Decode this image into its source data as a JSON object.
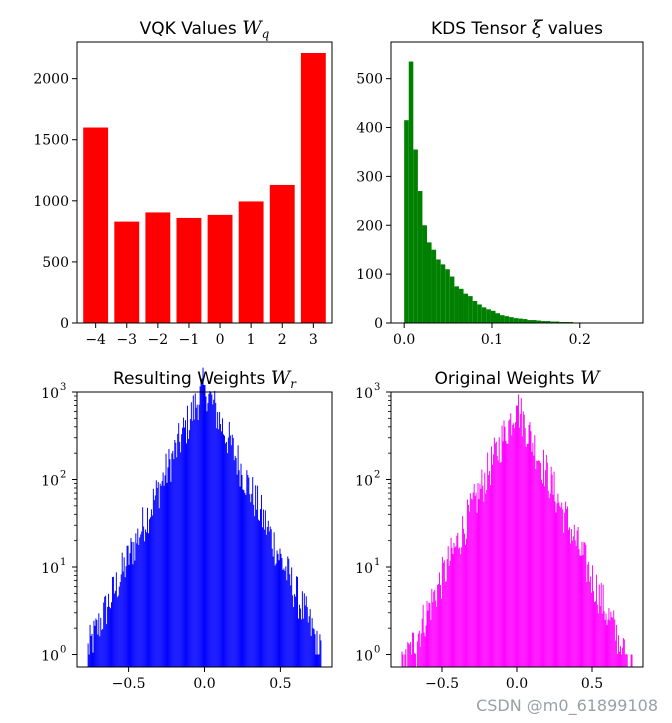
{
  "chart_data": [
    {
      "type": "bar",
      "title_text": "VQK Values ",
      "title_math": "W",
      "title_sub": "q",
      "color": "#ff0000",
      "categories": [
        -4,
        -3,
        -2,
        -1,
        0,
        1,
        2,
        3
      ],
      "x_tick_labels": [
        "−4",
        "−3",
        "−2",
        "−1",
        "0",
        "1",
        "2",
        "3"
      ],
      "values": [
        1600,
        830,
        905,
        860,
        885,
        995,
        1130,
        2210
      ],
      "ylim": [
        0,
        2300
      ],
      "y_ticks": [
        0,
        500,
        1000,
        1500,
        2000
      ],
      "y_tick_labels": [
        "0",
        "500",
        "1000",
        "1500",
        "2000"
      ],
      "xlabel": "",
      "ylabel": ""
    },
    {
      "type": "bar",
      "histogram": true,
      "title_text": "KDS Tensor ",
      "title_math": "ξ",
      "title_suffix": " values",
      "color": "#008000",
      "bin_start": 0.0,
      "bin_width": 0.0052,
      "values": [
        415,
        535,
        355,
        270,
        200,
        165,
        150,
        130,
        120,
        110,
        95,
        75,
        70,
        60,
        55,
        45,
        38,
        32,
        28,
        25,
        20,
        16,
        14,
        12,
        10,
        9,
        8,
        6,
        6,
        5,
        4,
        4,
        3,
        3,
        2,
        2,
        2,
        1,
        1,
        1,
        1,
        1,
        1,
        1,
        1,
        1,
        1,
        1,
        1,
        1
      ],
      "xlim": [
        -0.015,
        0.272
      ],
      "ylim": [
        0,
        575
      ],
      "x_ticks": [
        0,
        0.1,
        0.2
      ],
      "x_tick_labels": [
        "0.0",
        "0.1",
        "0.2"
      ],
      "y_ticks": [
        0,
        100,
        200,
        300,
        400,
        500
      ],
      "y_tick_labels": [
        "0",
        "100",
        "200",
        "300",
        "400",
        "500"
      ],
      "xlabel": "",
      "ylabel": ""
    },
    {
      "type": "bar",
      "histogram": true,
      "y_scale": "log",
      "title_text": "Resulting Weights ",
      "title_math": "W",
      "title_sub": "r",
      "color": "#0000ff",
      "x_center": 0.0,
      "peak_count": 1200,
      "spread": 0.11,
      "support": [
        -0.77,
        0.77
      ],
      "xlim": [
        -0.84,
        0.84
      ],
      "ylim": [
        0.72,
        1000
      ],
      "x_ticks": [
        -0.5,
        0.0,
        0.5
      ],
      "x_tick_labels": [
        "−0.5",
        "0.0",
        "0.5"
      ],
      "y_ticks": [
        1,
        10,
        100,
        1000
      ],
      "y_tick_labels": [
        "10",
        "10",
        "10",
        "10"
      ],
      "y_tick_exponents": [
        "0",
        "1",
        "2",
        "3"
      ],
      "xlabel": "",
      "ylabel": ""
    },
    {
      "type": "bar",
      "histogram": true,
      "y_scale": "log",
      "title_text": "Original Weights ",
      "title_math": "W",
      "color": "#ff00ff",
      "x_center": 0.0,
      "peak_count": 700,
      "spread": 0.11,
      "support": [
        -0.77,
        0.77
      ],
      "xlim": [
        -0.84,
        0.84
      ],
      "ylim": [
        0.72,
        1000
      ],
      "x_ticks": [
        -0.5,
        0.0,
        0.5
      ],
      "x_tick_labels": [
        "−0.5",
        "0.0",
        "0.5"
      ],
      "y_ticks": [
        1,
        10,
        100,
        1000
      ],
      "y_tick_labels": [
        "10",
        "10",
        "10",
        "10"
      ],
      "y_tick_exponents": [
        "0",
        "1",
        "2",
        "3"
      ],
      "xlabel": "",
      "ylabel": ""
    }
  ],
  "watermark": "CSDN @m0_61899108"
}
